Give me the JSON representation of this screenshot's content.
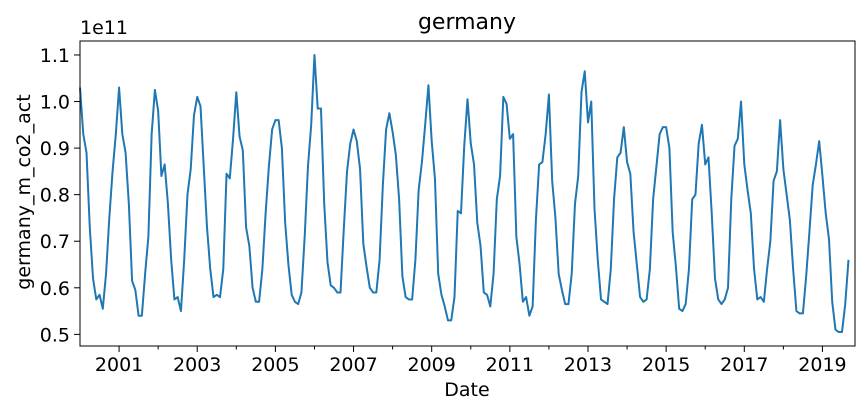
{
  "chart_data": {
    "type": "line",
    "title": "germany",
    "xlabel": "Date",
    "ylabel": "germany_m_co2_act",
    "y_offset_label": "1e11",
    "y_multiplier": 100000000000.0,
    "xlim": [
      2000.0,
      2019.833
    ],
    "ylim": [
      0.475,
      1.13
    ],
    "x_ticks": [
      2001,
      2003,
      2005,
      2007,
      2009,
      2011,
      2013,
      2015,
      2017,
      2019
    ],
    "x_tick_labels": [
      "2001",
      "2003",
      "2005",
      "2007",
      "2009",
      "2011",
      "2013",
      "2015",
      "2017",
      "2019"
    ],
    "x_minor_ticks": [
      2002,
      2004,
      2006,
      2008,
      2010,
      2012,
      2014,
      2016,
      2018
    ],
    "y_ticks": [
      0.5,
      0.6,
      0.7,
      0.8,
      0.9,
      1.0,
      1.1
    ],
    "y_tick_labels": [
      "0.5",
      "0.6",
      "0.7",
      "0.8",
      "0.9",
      "1.0",
      "1.1"
    ],
    "grid": false,
    "legend": "none",
    "line_color": "#1f77b4",
    "series": [
      {
        "values": [
          1.03,
          0.93,
          0.89,
          0.73,
          0.62,
          0.575,
          0.585,
          0.555,
          0.63,
          0.75,
          0.85,
          0.93,
          1.03,
          0.93,
          0.89,
          0.78,
          0.615,
          0.595,
          0.54,
          0.54,
          0.63,
          0.71,
          0.93,
          1.025,
          0.98,
          0.84,
          0.865,
          0.78,
          0.66,
          0.575,
          0.58,
          0.55,
          0.66,
          0.8,
          0.855,
          0.97,
          1.01,
          0.99,
          0.86,
          0.73,
          0.64,
          0.58,
          0.585,
          0.58,
          0.64,
          0.845,
          0.835,
          0.92,
          1.02,
          0.925,
          0.895,
          0.73,
          0.69,
          0.6,
          0.57,
          0.57,
          0.64,
          0.76,
          0.86,
          0.94,
          0.96,
          0.96,
          0.9,
          0.74,
          0.65,
          0.585,
          0.57,
          0.565,
          0.59,
          0.71,
          0.86,
          0.95,
          1.1,
          0.985,
          0.985,
          0.78,
          0.655,
          0.605,
          0.6,
          0.59,
          0.59,
          0.725,
          0.85,
          0.91,
          0.94,
          0.915,
          0.855,
          0.695,
          0.645,
          0.6,
          0.59,
          0.59,
          0.66,
          0.82,
          0.94,
          0.975,
          0.935,
          0.885,
          0.79,
          0.625,
          0.58,
          0.575,
          0.575,
          0.66,
          0.81,
          0.87,
          0.95,
          1.035,
          0.915,
          0.835,
          0.63,
          0.585,
          0.56,
          0.53,
          0.53,
          0.58,
          0.765,
          0.76,
          0.905,
          1.005,
          0.91,
          0.865,
          0.74,
          0.69,
          0.59,
          0.585,
          0.56,
          0.63,
          0.79,
          0.84,
          1.01,
          0.995,
          0.92,
          0.93,
          0.71,
          0.65,
          0.57,
          0.58,
          0.54,
          0.56,
          0.745,
          0.865,
          0.87,
          0.93,
          1.015,
          0.83,
          0.75,
          0.63,
          0.595,
          0.565,
          0.565,
          0.63,
          0.78,
          0.84,
          1.02,
          1.065,
          0.955,
          1.0,
          0.77,
          0.66,
          0.575,
          0.57,
          0.565,
          0.64,
          0.79,
          0.88,
          0.89,
          0.945,
          0.87,
          0.845,
          0.72,
          0.65,
          0.58,
          0.57,
          0.575,
          0.64,
          0.79,
          0.86,
          0.93,
          0.945,
          0.945,
          0.9,
          0.72,
          0.645,
          0.555,
          0.55,
          0.565,
          0.64,
          0.79,
          0.8,
          0.91,
          0.95,
          0.865,
          0.88,
          0.76,
          0.62,
          0.575,
          0.565,
          0.575,
          0.6,
          0.79,
          0.905,
          0.92,
          1.0,
          0.865,
          0.81,
          0.76,
          0.64,
          0.575,
          0.58,
          0.57,
          0.64,
          0.7,
          0.83,
          0.85,
          0.96,
          0.855,
          0.8,
          0.745,
          0.64,
          0.55,
          0.545,
          0.545,
          0.625,
          0.72,
          0.82,
          0.865,
          0.915,
          0.84,
          0.76,
          0.705,
          0.57,
          0.51,
          0.505,
          0.505,
          0.565,
          0.66
        ]
      }
    ]
  }
}
